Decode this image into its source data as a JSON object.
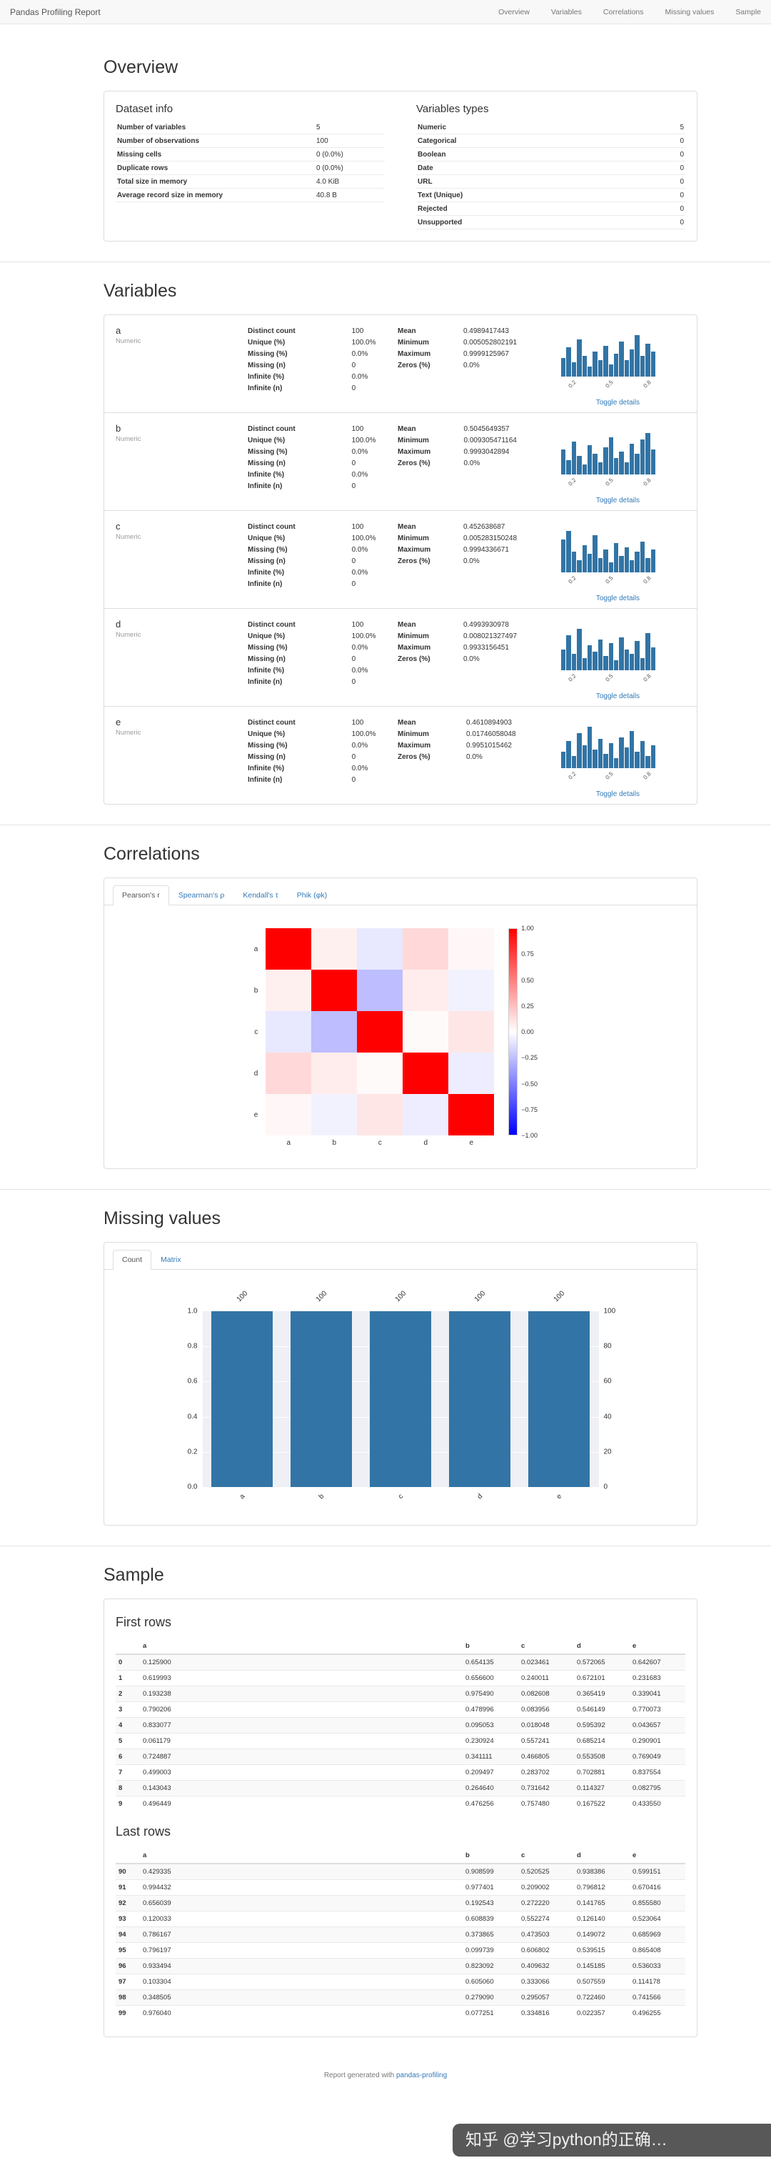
{
  "navbar": {
    "brand": "Pandas Profiling Report",
    "links": [
      "Overview",
      "Variables",
      "Correlations",
      "Missing values",
      "Sample"
    ]
  },
  "colors": {
    "link": "#337ab7",
    "bar": "#3274a5",
    "navbar_bg": "#f8f8f8",
    "heatmap_positive": "#ff0000",
    "heatmap_negative": "#0000ff"
  },
  "overview": {
    "title": "Overview",
    "dataset_info": {
      "title": "Dataset info",
      "rows": [
        {
          "label": "Number of variables",
          "value": "5"
        },
        {
          "label": "Number of observations",
          "value": "100"
        },
        {
          "label": "Missing cells",
          "value": "0 (0.0%)"
        },
        {
          "label": "Duplicate rows",
          "value": "0 (0.0%)"
        },
        {
          "label": "Total size in memory",
          "value": "4.0 KiB"
        },
        {
          "label": "Average record size in memory",
          "value": "40.8 B"
        }
      ]
    },
    "variables_types": {
      "title": "Variables types",
      "rows": [
        {
          "label": "Numeric",
          "value": "5"
        },
        {
          "label": "Categorical",
          "value": "0"
        },
        {
          "label": "Boolean",
          "value": "0"
        },
        {
          "label": "Date",
          "value": "0"
        },
        {
          "label": "URL",
          "value": "0"
        },
        {
          "label": "Text (Unique)",
          "value": "0"
        },
        {
          "label": "Rejected",
          "value": "0"
        },
        {
          "label": "Unsupported",
          "value": "0"
        }
      ]
    }
  },
  "variables": {
    "title": "Variables",
    "toggle_label": "Toggle details",
    "hist_ticks": [
      "0.2",
      "0.5",
      "0.8"
    ],
    "items": [
      {
        "name": "a",
        "type": "Numeric",
        "stats1": [
          [
            "Distinct count",
            "100"
          ],
          [
            "Unique (%)",
            "100.0%"
          ],
          [
            "Missing (%)",
            "0.0%"
          ],
          [
            "Missing (n)",
            "0"
          ],
          [
            "Infinite (%)",
            "0.0%"
          ],
          [
            "Infinite (n)",
            "0"
          ]
        ],
        "stats2": [
          [
            "Mean",
            "0.4989417443"
          ],
          [
            "Minimum",
            "0.005052802191"
          ],
          [
            "Maximum",
            "0.9999125967"
          ],
          [
            "Zeros (%)",
            "0.0%"
          ]
        ],
        "histogram": [
          0.45,
          0.7,
          0.35,
          0.9,
          0.5,
          0.25,
          0.6,
          0.4,
          0.75,
          0.3,
          0.55,
          0.85,
          0.4,
          0.65,
          1.0,
          0.5,
          0.8,
          0.6
        ]
      },
      {
        "name": "b",
        "type": "Numeric",
        "stats1": [
          [
            "Distinct count",
            "100"
          ],
          [
            "Unique (%)",
            "100.0%"
          ],
          [
            "Missing (%)",
            "0.0%"
          ],
          [
            "Missing (n)",
            "0"
          ],
          [
            "Infinite (%)",
            "0.0%"
          ],
          [
            "Infinite (n)",
            "0"
          ]
        ],
        "stats2": [
          [
            "Mean",
            "0.5045649357"
          ],
          [
            "Minimum",
            "0.009305471164"
          ],
          [
            "Maximum",
            "0.9993042894"
          ],
          [
            "Zeros (%)",
            "0.0%"
          ]
        ],
        "histogram": [
          0.6,
          0.35,
          0.8,
          0.45,
          0.25,
          0.7,
          0.5,
          0.3,
          0.65,
          0.9,
          0.4,
          0.55,
          0.3,
          0.75,
          0.5,
          0.85,
          1.0,
          0.6
        ]
      },
      {
        "name": "c",
        "type": "Numeric",
        "stats1": [
          [
            "Distinct count",
            "100"
          ],
          [
            "Unique (%)",
            "100.0%"
          ],
          [
            "Missing (%)",
            "0.0%"
          ],
          [
            "Missing (n)",
            "0"
          ],
          [
            "Infinite (%)",
            "0.0%"
          ],
          [
            "Infinite (n)",
            "0"
          ]
        ],
        "stats2": [
          [
            "Mean",
            "0.452638687"
          ],
          [
            "Minimum",
            "0.005283150248"
          ],
          [
            "Maximum",
            "0.9994336671"
          ],
          [
            "Zeros (%)",
            "0.0%"
          ]
        ],
        "histogram": [
          0.8,
          1.0,
          0.5,
          0.3,
          0.65,
          0.45,
          0.9,
          0.35,
          0.55,
          0.25,
          0.7,
          0.4,
          0.6,
          0.3,
          0.5,
          0.75,
          0.35,
          0.55
        ]
      },
      {
        "name": "d",
        "type": "Numeric",
        "stats1": [
          [
            "Distinct count",
            "100"
          ],
          [
            "Unique (%)",
            "100.0%"
          ],
          [
            "Missing (%)",
            "0.0%"
          ],
          [
            "Missing (n)",
            "0"
          ],
          [
            "Infinite (%)",
            "0.0%"
          ],
          [
            "Infinite (n)",
            "0"
          ]
        ],
        "stats2": [
          [
            "Mean",
            "0.4993930978"
          ],
          [
            "Minimum",
            "0.008021327497"
          ],
          [
            "Maximum",
            "0.9933156451"
          ],
          [
            "Zeros (%)",
            "0.0%"
          ]
        ],
        "histogram": [
          0.5,
          0.85,
          0.4,
          1.0,
          0.3,
          0.6,
          0.45,
          0.75,
          0.35,
          0.65,
          0.25,
          0.8,
          0.5,
          0.4,
          0.7,
          0.3,
          0.9,
          0.55
        ]
      },
      {
        "name": "e",
        "type": "Numeric",
        "stats1": [
          [
            "Distinct count",
            "100"
          ],
          [
            "Unique (%)",
            "100.0%"
          ],
          [
            "Missing (%)",
            "0.0%"
          ],
          [
            "Missing (n)",
            "0"
          ],
          [
            "Infinite (%)",
            "0.0%"
          ],
          [
            "Infinite (n)",
            "0"
          ]
        ],
        "stats2": [
          [
            "Mean",
            "0.4610894903"
          ],
          [
            "Minimum",
            "0.01746058048"
          ],
          [
            "Maximum",
            "0.9951015462"
          ],
          [
            "Zeros (%)",
            "0.0%"
          ]
        ],
        "histogram": [
          0.4,
          0.65,
          0.3,
          0.85,
          0.55,
          1.0,
          0.45,
          0.7,
          0.35,
          0.6,
          0.25,
          0.75,
          0.5,
          0.9,
          0.4,
          0.65,
          0.3,
          0.55
        ]
      }
    ]
  },
  "correlations": {
    "title": "Correlations",
    "tabs": [
      "Pearson's r",
      "Spearman's ρ",
      "Kendall's τ",
      "Phik (φk)"
    ],
    "active_tab": 0,
    "chart_data": {
      "type": "heatmap",
      "labels": [
        "a",
        "b",
        "c",
        "d",
        "e"
      ],
      "matrix": [
        [
          1.0,
          0.06,
          -0.09,
          0.15,
          0.03
        ],
        [
          0.06,
          1.0,
          -0.26,
          0.07,
          -0.05
        ],
        [
          -0.09,
          -0.26,
          1.0,
          0.02,
          0.1
        ],
        [
          0.15,
          0.07,
          0.02,
          1.0,
          -0.07
        ],
        [
          0.03,
          -0.05,
          0.1,
          -0.07,
          1.0
        ]
      ],
      "vmin": -1,
      "vmax": 1,
      "colormap": "blue-white-red",
      "colorbar_ticks": [
        "1.00",
        "0.75",
        "0.50",
        "0.25",
        "0.00",
        "−0.25",
        "−0.50",
        "−0.75",
        "−1.00"
      ]
    }
  },
  "missing": {
    "title": "Missing values",
    "tabs": [
      "Count",
      "Matrix"
    ],
    "active_tab": 0,
    "chart_data": {
      "type": "bar",
      "categories": [
        "a",
        "b",
        "c",
        "d",
        "e"
      ],
      "values": [
        100,
        100,
        100,
        100,
        100
      ],
      "bar_labels": [
        "100",
        "100",
        "100",
        "100",
        "100"
      ],
      "left_ticks": [
        "1.0",
        "0.8",
        "0.6",
        "0.4",
        "0.2",
        "0.0"
      ],
      "right_ticks": [
        "100",
        "80",
        "60",
        "40",
        "20",
        "0"
      ],
      "ylim_left": [
        0,
        1
      ],
      "ylim_right": [
        0,
        100
      ]
    }
  },
  "sample": {
    "title": "Sample",
    "first": {
      "title": "First rows",
      "columns": [
        "",
        "a",
        "b",
        "c",
        "d",
        "e"
      ],
      "rows": [
        {
          "index": "0",
          "values": [
            "0.125900",
            "0.654135",
            "0.023461",
            "0.572065",
            "0.642607"
          ]
        },
        {
          "index": "1",
          "values": [
            "0.619993",
            "0.656600",
            "0.240011",
            "0.672101",
            "0.231683"
          ]
        },
        {
          "index": "2",
          "values": [
            "0.193238",
            "0.975490",
            "0.082608",
            "0.365419",
            "0.339041"
          ]
        },
        {
          "index": "3",
          "values": [
            "0.790206",
            "0.478996",
            "0.083956",
            "0.546149",
            "0.770073"
          ]
        },
        {
          "index": "4",
          "values": [
            "0.833077",
            "0.095053",
            "0.018048",
            "0.595392",
            "0.043657"
          ]
        },
        {
          "index": "5",
          "values": [
            "0.061179",
            "0.230924",
            "0.557241",
            "0.685214",
            "0.290901"
          ]
        },
        {
          "index": "6",
          "values": [
            "0.724887",
            "0.341111",
            "0.466805",
            "0.553508",
            "0.769049"
          ]
        },
        {
          "index": "7",
          "values": [
            "0.499003",
            "0.209497",
            "0.283702",
            "0.702881",
            "0.837554"
          ]
        },
        {
          "index": "8",
          "values": [
            "0.143043",
            "0.264640",
            "0.731642",
            "0.114327",
            "0.082795"
          ]
        },
        {
          "index": "9",
          "values": [
            "0.496449",
            "0.476256",
            "0.757480",
            "0.167522",
            "0.433550"
          ]
        }
      ]
    },
    "last": {
      "title": "Last rows",
      "columns": [
        "",
        "a",
        "b",
        "c",
        "d",
        "e"
      ],
      "rows": [
        {
          "index": "90",
          "values": [
            "0.429335",
            "0.908599",
            "0.520525",
            "0.938386",
            "0.599151"
          ]
        },
        {
          "index": "91",
          "values": [
            "0.994432",
            "0.977401",
            "0.209002",
            "0.796812",
            "0.670416"
          ]
        },
        {
          "index": "92",
          "values": [
            "0.656039",
            "0.192543",
            "0.272220",
            "0.141765",
            "0.855580"
          ]
        },
        {
          "index": "93",
          "values": [
            "0.120033",
            "0.608839",
            "0.552274",
            "0.126140",
            "0.523064"
          ]
        },
        {
          "index": "94",
          "values": [
            "0.786167",
            "0.373865",
            "0.473503",
            "0.149072",
            "0.685969"
          ]
        },
        {
          "index": "95",
          "values": [
            "0.796197",
            "0.099739",
            "0.606802",
            "0.539515",
            "0.865408"
          ]
        },
        {
          "index": "96",
          "values": [
            "0.933494",
            "0.823092",
            "0.409632",
            "0.145185",
            "0.536033"
          ]
        },
        {
          "index": "97",
          "values": [
            "0.103304",
            "0.605060",
            "0.333066",
            "0.507559",
            "0.114178"
          ]
        },
        {
          "index": "98",
          "values": [
            "0.348505",
            "0.279090",
            "0.295057",
            "0.722460",
            "0.741566"
          ]
        },
        {
          "index": "99",
          "values": [
            "0.976040",
            "0.077251",
            "0.334816",
            "0.022357",
            "0.496255"
          ]
        }
      ]
    }
  },
  "footer": {
    "text": "Report generated with ",
    "link_label": "pandas-profiling"
  },
  "watermark": {
    "text": "知乎 @学习python的正确…"
  }
}
